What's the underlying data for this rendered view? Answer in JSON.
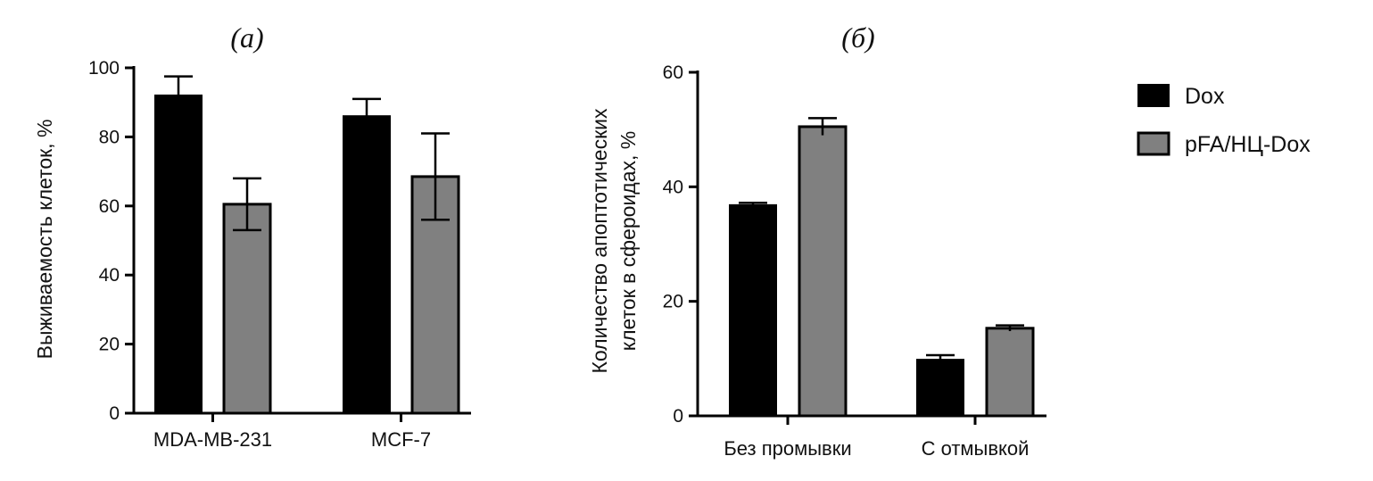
{
  "chart_data": [
    {
      "type": "bar",
      "panel_label": "(а)",
      "ylabel": "Выживаемость клеток, %",
      "categories": [
        "MDA-MB-231",
        "MCF-7"
      ],
      "ylim": [
        0,
        100
      ],
      "yticks": [
        0,
        20,
        40,
        60,
        80,
        100
      ],
      "series": [
        {
          "name": "Dox",
          "values": [
            92,
            86
          ],
          "errors": [
            5.5,
            5
          ]
        },
        {
          "name": "pFA/НЦ-Dox",
          "values": [
            60.5,
            68.5
          ],
          "errors": [
            7.5,
            12.5
          ]
        }
      ]
    },
    {
      "type": "bar",
      "panel_label": "(б)",
      "ylabel_lines": [
        "Количество апоптотических",
        "клеток в сфероидах, %"
      ],
      "categories": [
        "Без промывки",
        "С отмывкой"
      ],
      "ylim": [
        0,
        60
      ],
      "yticks": [
        0,
        20,
        40,
        60
      ],
      "series": [
        {
          "name": "Dox",
          "values": [
            36.8,
            9.8
          ],
          "errors": [
            0.4,
            0.8
          ]
        },
        {
          "name": "pFA/НЦ-Dox",
          "values": [
            50.5,
            15.3
          ],
          "errors": [
            1.5,
            0.5
          ]
        }
      ]
    }
  ],
  "legend": {
    "position": "top-right",
    "items": [
      {
        "label": "Dox",
        "color": "#000000"
      },
      {
        "label": "pFA/НЦ-Dox",
        "color": "#808080"
      }
    ]
  },
  "colors": {
    "series": [
      "#000000",
      "#808080"
    ],
    "axis": "#000000"
  }
}
